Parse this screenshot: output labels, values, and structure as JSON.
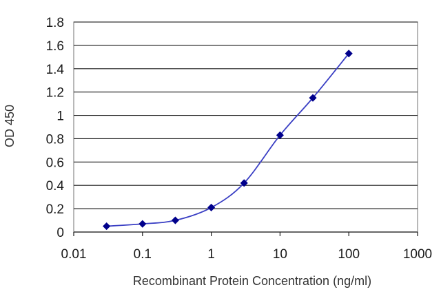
{
  "chart_data": {
    "type": "line",
    "xscale": "log",
    "xlabel": "Recombinant Protein Concentration (ng/ml)",
    "ylabel": "OD 450",
    "xlim": [
      0.01,
      1000
    ],
    "ylim": [
      0,
      1.8
    ],
    "x_ticks": [
      0.01,
      0.1,
      1,
      10,
      100,
      1000
    ],
    "x_tick_labels": [
      "0.01",
      "0.1",
      "1",
      "10",
      "100",
      "1000"
    ],
    "y_ticks": [
      0,
      0.2,
      0.4,
      0.6,
      0.8,
      1,
      1.2,
      1.4,
      1.6,
      1.8
    ],
    "y_tick_labels": [
      "0",
      "0.2",
      "0.4",
      "0.6",
      "0.8",
      "1",
      "1.2",
      "1.4",
      "1.6",
      "1.8"
    ],
    "grid": "horizontal",
    "series": [
      {
        "x": [
          0.03,
          0.1,
          0.3,
          1,
          3,
          10,
          30,
          100
        ],
        "y": [
          0.05,
          0.07,
          0.1,
          0.21,
          0.42,
          0.83,
          1.15,
          1.53
        ]
      }
    ],
    "colors": {
      "line": "#3a3fc4",
      "marker": "#00008b",
      "grid": "#1a1a1a",
      "plot_border": "#888888"
    }
  }
}
